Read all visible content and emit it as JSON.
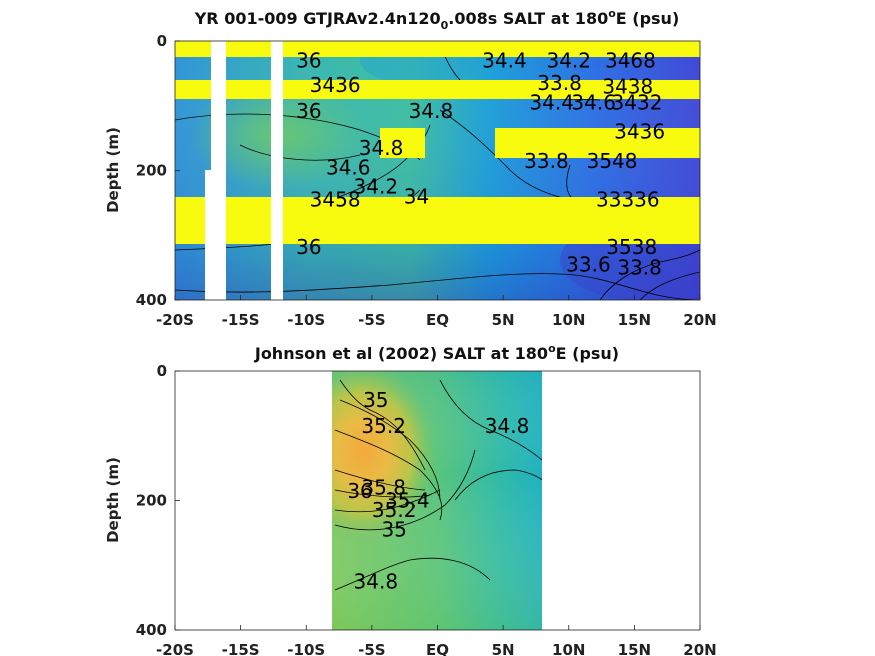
{
  "chart_data": [
    {
      "type": "contour",
      "title": "YR 001-009 GTJRAv2.4n120",
      "title_subscript": "0",
      "title_rest": ".008s SALT at 180",
      "title_superscript": "o",
      "title_end": "E (psu)",
      "ylabel": "Depth (m)",
      "xlim": [
        -20,
        20
      ],
      "ylim": [
        400,
        0
      ],
      "xticks": [
        "-20S",
        "-15S",
        "-10S",
        "-5S",
        "EQ",
        "5N",
        "10N",
        "15N",
        "20N"
      ],
      "yticks": [
        "0",
        "200",
        "400"
      ],
      "colormap": [
        "#3e26a8",
        "#2f62ee",
        "#1d91e4",
        "#12b3c3",
        "#46c683",
        "#9cc748",
        "#e1b72f",
        "#fbd422",
        "#f9fb0e"
      ],
      "masked_yellow_bands_depth": [
        [
          0,
          25
        ],
        [
          65,
          92
        ],
        [
          140,
          185
        ],
        [
          240,
          310
        ]
      ],
      "white_gaps_lon": [
        [
          -18.7,
          -17.3
        ],
        [
          -12.8,
          -12.0
        ]
      ],
      "contour_labels": [
        {
          "text": "36",
          "lon": -9.8,
          "depth": 30
        },
        {
          "text": "34.4",
          "lon": 5.1,
          "depth": 30
        },
        {
          "text": "34.2",
          "lon": 10,
          "depth": 30
        },
        {
          "text": "3468",
          "lon": 14.7,
          "depth": 30
        },
        {
          "text": "3436",
          "lon": -7.8,
          "depth": 68
        },
        {
          "text": "33.8",
          "lon": 9.3,
          "depth": 65
        },
        {
          "text": "3438",
          "lon": 14.5,
          "depth": 70
        },
        {
          "text": "34.4",
          "lon": 8.7,
          "depth": 95
        },
        {
          "text": "34.6",
          "lon": 11.9,
          "depth": 95
        },
        {
          "text": "3432",
          "lon": 15.2,
          "depth": 95
        },
        {
          "text": "36",
          "lon": -9.8,
          "depth": 108
        },
        {
          "text": "34.8",
          "lon": -0.5,
          "depth": 108
        },
        {
          "text": "3436",
          "lon": 15.4,
          "depth": 140
        },
        {
          "text": "34.8",
          "lon": -4.3,
          "depth": 165
        },
        {
          "text": "34.6",
          "lon": -6.8,
          "depth": 195
        },
        {
          "text": "33.8",
          "lon": 8.3,
          "depth": 185
        },
        {
          "text": "3548",
          "lon": 13.3,
          "depth": 185
        },
        {
          "text": "34.2",
          "lon": -4.7,
          "depth": 225
        },
        {
          "text": "34",
          "lon": -1.6,
          "depth": 240
        },
        {
          "text": "3458",
          "lon": -7.8,
          "depth": 245
        },
        {
          "text": "33336",
          "lon": 14.5,
          "depth": 245
        },
        {
          "text": "36",
          "lon": -9.8,
          "depth": 318
        },
        {
          "text": "33.6",
          "lon": 11.5,
          "depth": 345
        },
        {
          "text": "3538",
          "lon": 14.8,
          "depth": 318
        },
        {
          "text": "33.8",
          "lon": 15.4,
          "depth": 350
        }
      ]
    },
    {
      "type": "contour",
      "title": "Johnson et al (2002) SALT at 180",
      "title_superscript": "o",
      "title_end": "E (psu)",
      "ylabel": "Depth (m)",
      "xlim": [
        -20,
        20
      ],
      "ylim": [
        400,
        0
      ],
      "xticks": [
        "-20S",
        "-15S",
        "-10S",
        "-5S",
        "EQ",
        "5N",
        "10N",
        "15N",
        "20N"
      ],
      "yticks": [
        "0",
        "200",
        "400"
      ],
      "data_lon_range": [
        -8,
        8
      ],
      "contour_labels": [
        {
          "text": "35",
          "lon": -4.7,
          "depth": 45
        },
        {
          "text": "35.2",
          "lon": -4.1,
          "depth": 85
        },
        {
          "text": "34.8",
          "lon": 5.3,
          "depth": 85
        },
        {
          "text": "36",
          "lon": -5.9,
          "depth": 185
        },
        {
          "text": "35.8",
          "lon": -4.1,
          "depth": 180
        },
        {
          "text": "35.4",
          "lon": -2.3,
          "depth": 200
        },
        {
          "text": "35.2",
          "lon": -3.3,
          "depth": 215
        },
        {
          "text": "35",
          "lon": -3.3,
          "depth": 245
        },
        {
          "text": "34.8",
          "lon": -4.7,
          "depth": 325
        }
      ]
    }
  ]
}
